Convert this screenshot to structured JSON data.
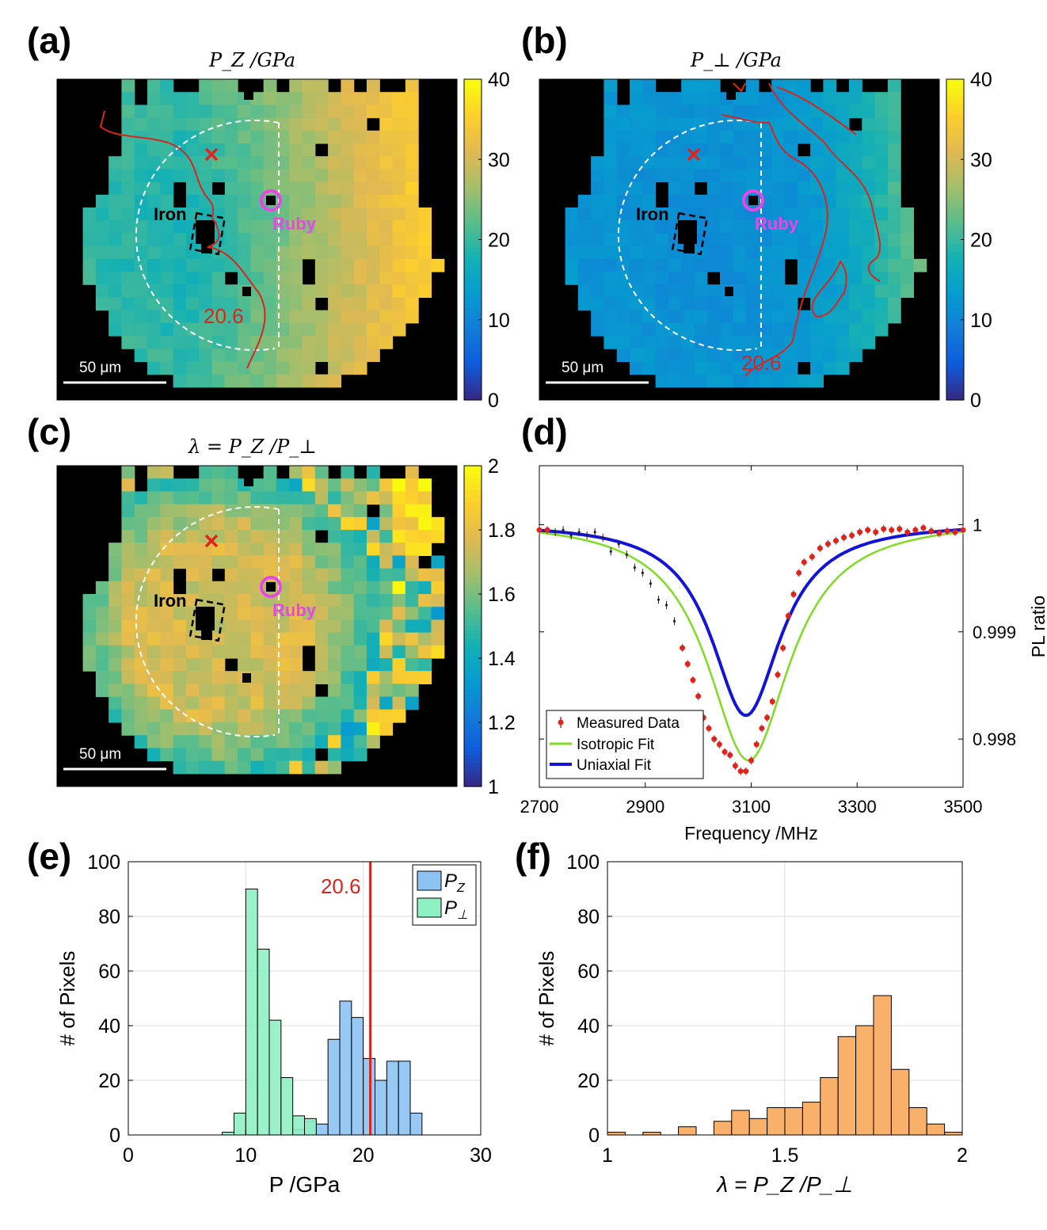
{
  "panels": {
    "a": {
      "letter": "(a)",
      "title": "P_Z /GPa"
    },
    "b": {
      "letter": "(b)",
      "title": "P_⊥ /GPa"
    },
    "c": {
      "letter": "(c)",
      "title": "λ = P_Z /P_⊥"
    },
    "d": {
      "letter": "(d)"
    },
    "e": {
      "letter": "(e)"
    },
    "f": {
      "letter": "(f)"
    }
  },
  "map_labels": {
    "iron": "Iron",
    "ruby": "Ruby",
    "contour_value": "20.6",
    "scale_bar": "50 μm"
  },
  "colors": {
    "contour": "#d7261e",
    "ruby": "#e946e6",
    "cross": "#e0241c",
    "pz_hist": "#8cc3f3",
    "pperp_hist": "#8ff0c4",
    "lambda_hist": "#f8b06a",
    "measured": "#e0241c",
    "isotropic": "#7fdc25",
    "uniaxial": "#1414d8"
  },
  "chart_data": [
    {
      "panel": "a",
      "type": "heatmap",
      "title": "P_Z /GPa",
      "colorbar_ticks": [
        "0",
        "10",
        "20",
        "30",
        "40"
      ],
      "clim": [
        0,
        40
      ],
      "annotations": [
        "Iron",
        "Ruby",
        "20.6",
        "50 μm"
      ]
    },
    {
      "panel": "b",
      "type": "heatmap",
      "title": "P_⊥ /GPa",
      "colorbar_ticks": [
        "0",
        "10",
        "20",
        "30",
        "40"
      ],
      "clim": [
        0,
        40
      ],
      "annotations": [
        "Iron",
        "Ruby",
        "20.6",
        "50 μm"
      ]
    },
    {
      "panel": "c",
      "type": "heatmap",
      "title": "λ = P_Z /P_⊥",
      "colorbar_ticks": [
        "1",
        "1.2",
        "1.4",
        "1.6",
        "1.8",
        "2"
      ],
      "clim": [
        1,
        2
      ],
      "annotations": [
        "Iron",
        "Ruby",
        "50 μm"
      ]
    },
    {
      "panel": "d",
      "type": "line",
      "xlabel": "Frequency /MHz",
      "ylabel": "PL ratio",
      "xlim": [
        2700,
        3500
      ],
      "ylim": [
        0.99755,
        1.00055
      ],
      "xticks": [
        "2700",
        "2900",
        "3100",
        "3300",
        "3500"
      ],
      "yticks": [
        "0.998",
        "0.999",
        "1"
      ],
      "legend": [
        "Measured Data",
        "Isotropic Fit",
        "Uniaxial Fit"
      ],
      "legend_position": "bottom-left",
      "measured": {
        "x": [
          2700,
          2715,
          2730,
          2745,
          2760,
          2775,
          2790,
          2805,
          2820,
          2835,
          2850,
          2865,
          2880,
          2895,
          2910,
          2925,
          2940,
          2955,
          2970,
          2980,
          2990,
          3000,
          3010,
          3020,
          3030,
          3040,
          3050,
          3060,
          3070,
          3080,
          3090,
          3100,
          3110,
          3120,
          3130,
          3140,
          3150,
          3160,
          3170,
          3180,
          3190,
          3200,
          3215,
          3230,
          3245,
          3260,
          3275,
          3290,
          3305,
          3320,
          3335,
          3350,
          3365,
          3380,
          3395,
          3410,
          3425,
          3440,
          3455,
          3470,
          3485,
          3500
        ],
        "y": [
          0.99995,
          0.99995,
          0.99993,
          0.99995,
          0.9999,
          0.99993,
          0.9999,
          0.99993,
          0.99988,
          0.99975,
          0.99982,
          0.99972,
          0.9996,
          0.99955,
          0.99945,
          0.9993,
          0.99925,
          0.9991,
          0.99885,
          0.9987,
          0.99855,
          0.9984,
          0.9982,
          0.9981,
          0.998,
          0.99795,
          0.99788,
          0.99785,
          0.99775,
          0.9977,
          0.9977,
          0.9978,
          0.99795,
          0.9981,
          0.9982,
          0.99835,
          0.9986,
          0.99885,
          0.99915,
          0.99935,
          0.99955,
          0.99965,
          0.9997,
          0.99978,
          0.99982,
          0.99985,
          0.99988,
          0.9999,
          0.99993,
          0.99995,
          0.99993,
          0.99996,
          0.99995,
          0.99996,
          0.99993,
          0.99995,
          0.99997,
          0.99994,
          0.99992,
          0.99994,
          0.99993,
          0.99995
        ]
      },
      "isotropic_fit": {
        "center": 3095,
        "width": 95,
        "depth": 0.00225,
        "baseline": 1.00005
      },
      "uniaxial_fit": {
        "center": 3090,
        "width": 80,
        "depth": 0.0018,
        "baseline": 1.00002
      }
    },
    {
      "panel": "e",
      "type": "bar",
      "xlabel": "P /GPa",
      "ylabel": "# of Pixels",
      "xlim": [
        0,
        30
      ],
      "ylim": [
        0,
        100
      ],
      "xticks": [
        "0",
        "10",
        "20",
        "30"
      ],
      "yticks": [
        "0",
        "20",
        "40",
        "60",
        "80",
        "100"
      ],
      "bin_width": 1,
      "bin_starts": [
        8,
        9,
        10,
        11,
        12,
        13,
        14,
        15,
        16,
        17,
        18,
        19,
        20,
        21,
        22,
        23,
        24
      ],
      "series": [
        {
          "name": "P_⊥",
          "values": [
            1,
            8,
            90,
            68,
            42,
            21,
            7,
            6,
            0,
            0,
            0,
            0,
            0,
            0,
            0,
            0,
            0
          ]
        },
        {
          "name": "P_Z",
          "values": [
            0,
            0,
            0,
            0,
            0,
            0,
            2,
            5,
            4,
            35,
            49,
            43,
            28,
            20,
            27,
            27,
            8
          ]
        }
      ],
      "vline": {
        "x": 20.6,
        "label": "20.6"
      },
      "legend_position": "top-right"
    },
    {
      "panel": "f",
      "type": "bar",
      "xlabel": "λ = P_Z /P_⊥",
      "ylabel": "# of Pixels",
      "xlim": [
        1,
        2
      ],
      "ylim": [
        0,
        100
      ],
      "xticks": [
        "1",
        "1.5",
        "2"
      ],
      "yticks": [
        "0",
        "20",
        "40",
        "60",
        "80",
        "100"
      ],
      "bin_width": 0.05,
      "bin_starts": [
        1.0,
        1.05,
        1.1,
        1.15,
        1.2,
        1.25,
        1.3,
        1.35,
        1.4,
        1.45,
        1.5,
        1.55,
        1.6,
        1.65,
        1.7,
        1.75,
        1.8,
        1.85,
        1.9,
        1.95
      ],
      "values": [
        1,
        0,
        1,
        0,
        3,
        0,
        5,
        9,
        6,
        10,
        10,
        12,
        21,
        36,
        40,
        51,
        24,
        10,
        4,
        1
      ]
    }
  ]
}
